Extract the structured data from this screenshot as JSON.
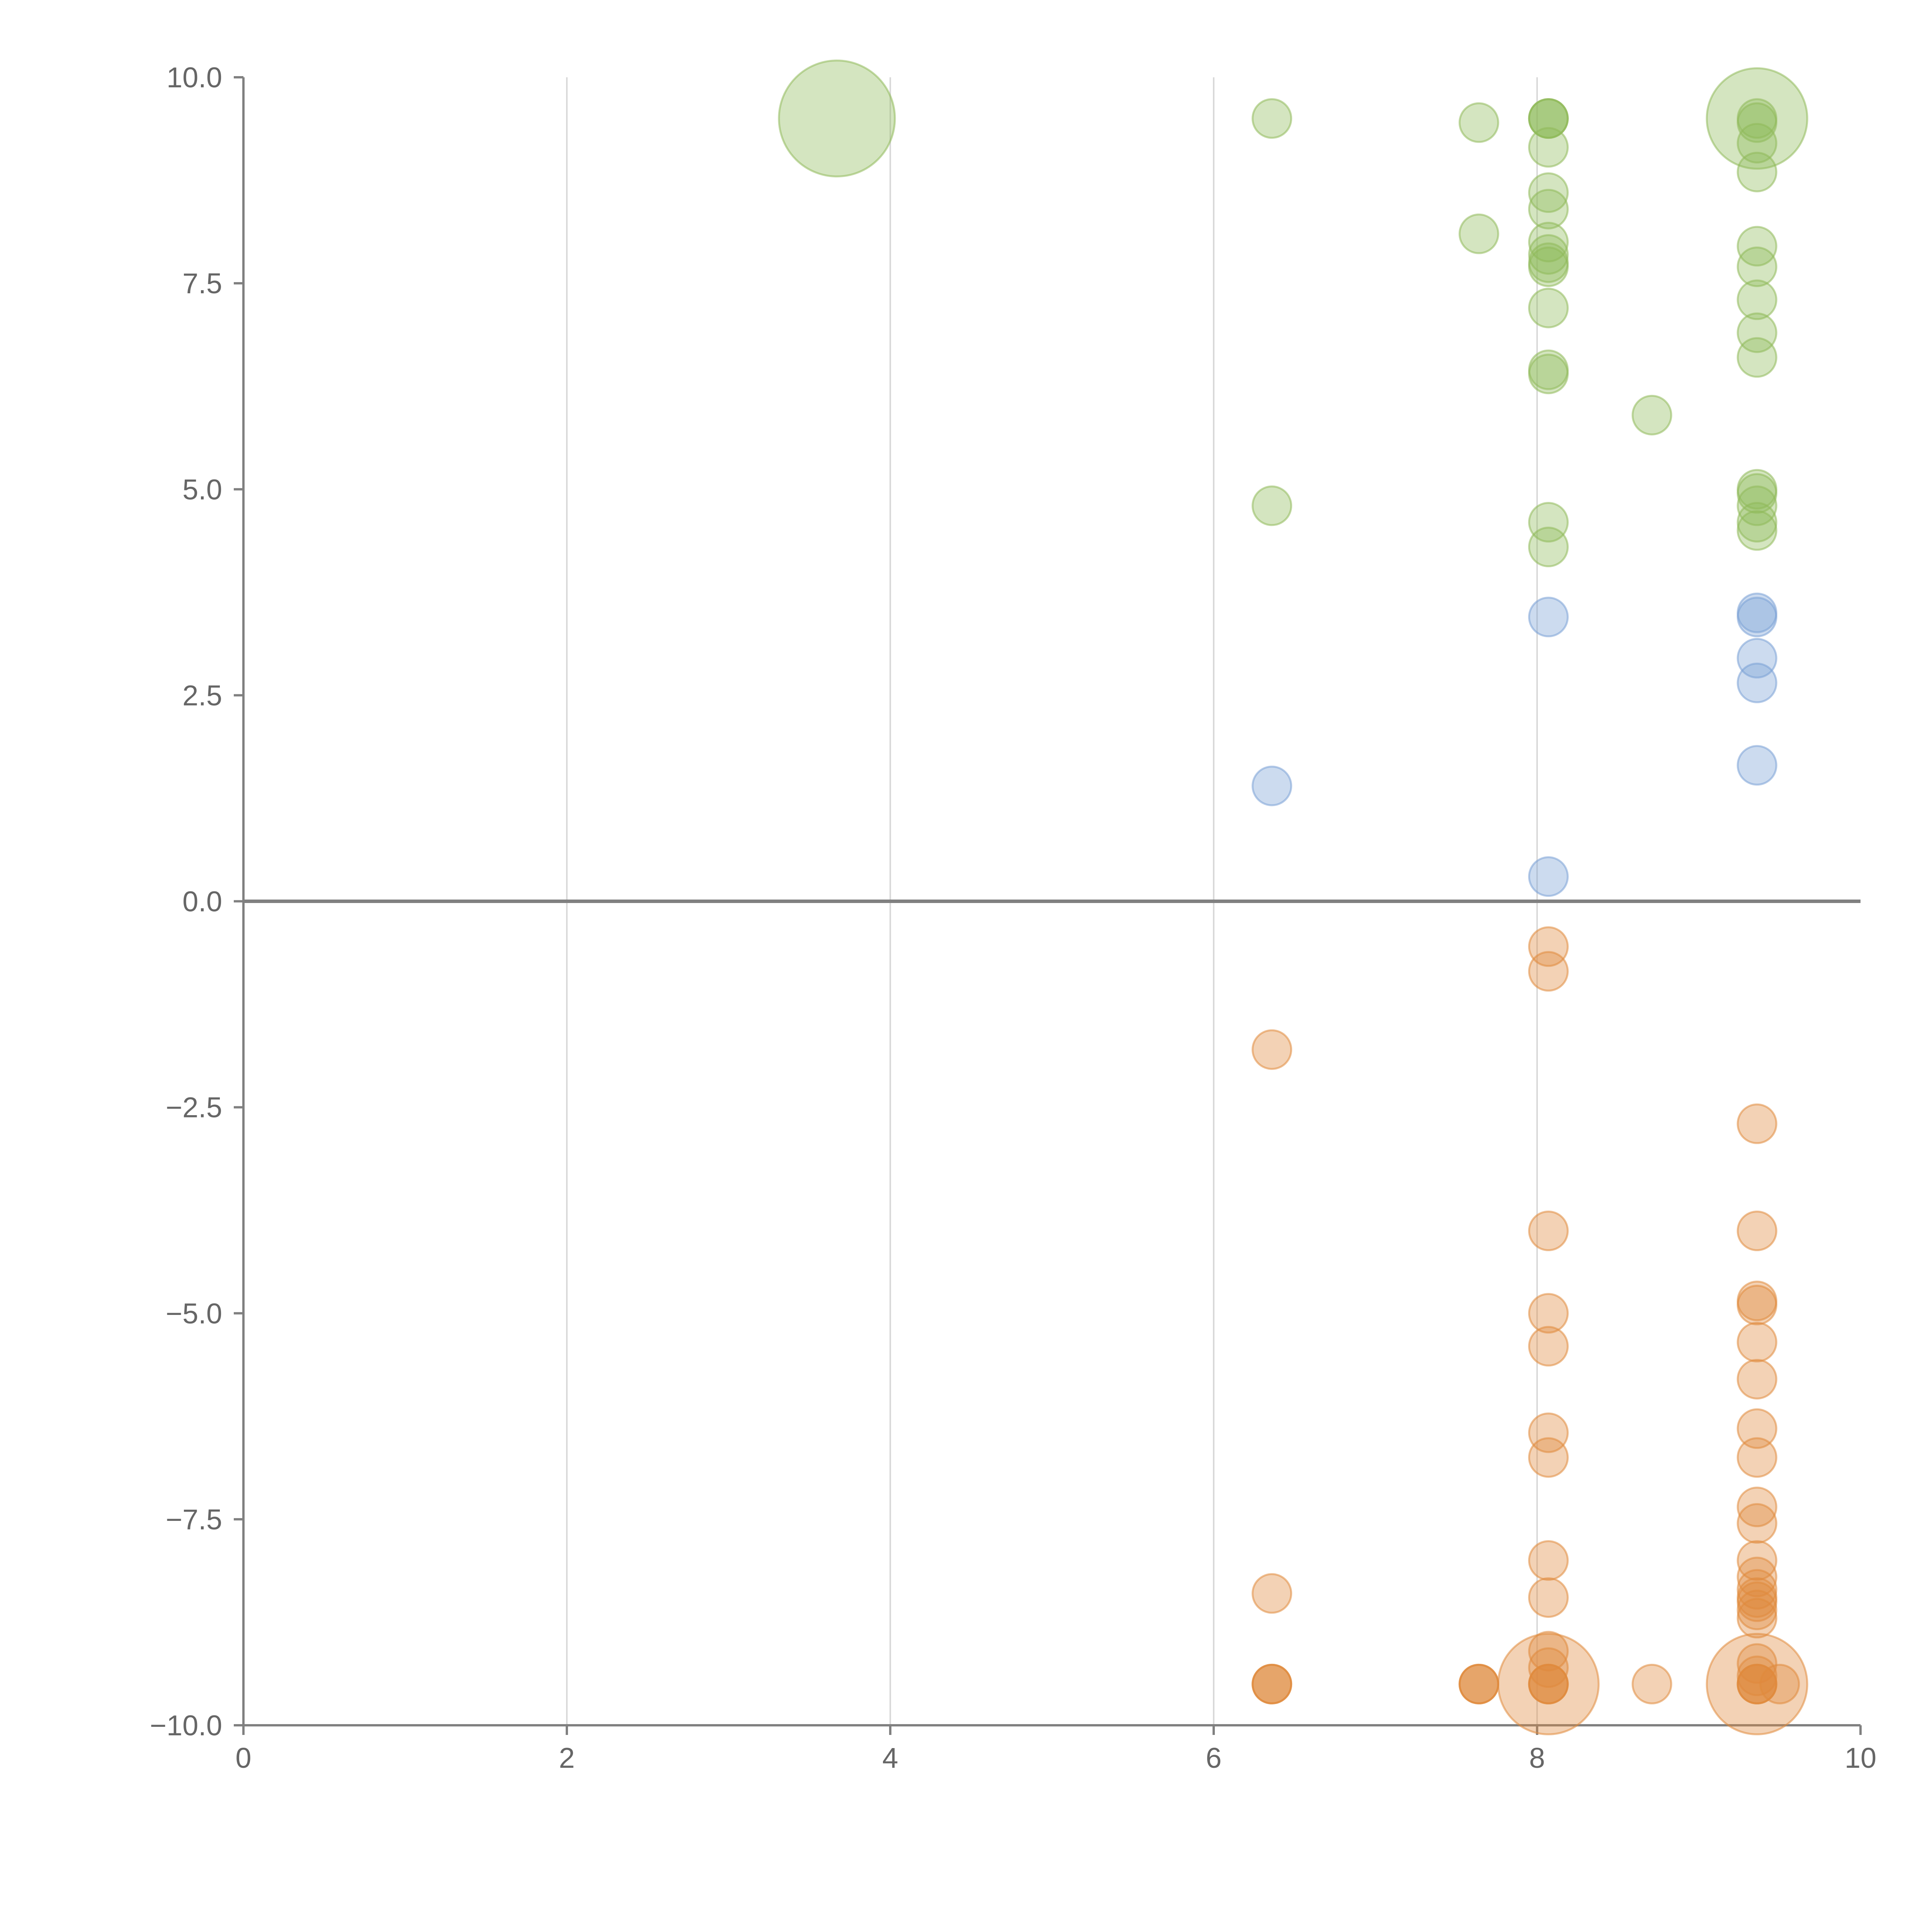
{
  "chart_data": {
    "type": "scatter",
    "title": "",
    "xlabel": "",
    "ylabel": "",
    "xlim": [
      0,
      10
    ],
    "ylim": [
      -10,
      10
    ],
    "x_ticks": [
      "0",
      "2",
      "4",
      "6",
      "8",
      "10"
    ],
    "y_ticks": [
      "10.0",
      "7.5",
      "5.0",
      "2.5",
      "0.0",
      "−2.5",
      "−5.0",
      "−7.5",
      "−10.0"
    ],
    "grid": "vertical",
    "zero_line": true,
    "colors": {
      "green": "#8fba5a",
      "blue": "#7aa0d6",
      "orange": "#e08a3c"
    },
    "series": [
      {
        "color": "#8fba5a",
        "points": [
          {
            "x": 3.67,
            "y": 9.5,
            "size": 3
          },
          {
            "x": 6.36,
            "y": 9.5
          },
          {
            "x": 6.36,
            "y": 4.8
          },
          {
            "x": 7.64,
            "y": 9.45
          },
          {
            "x": 7.64,
            "y": 8.1
          },
          {
            "x": 8.07,
            "y": 9.5
          },
          {
            "x": 8.07,
            "y": 9.5
          },
          {
            "x": 8.07,
            "y": 9.5
          },
          {
            "x": 8.07,
            "y": 9.15
          },
          {
            "x": 8.07,
            "y": 8.6
          },
          {
            "x": 8.07,
            "y": 8.4
          },
          {
            "x": 8.07,
            "y": 8.0
          },
          {
            "x": 8.07,
            "y": 7.85
          },
          {
            "x": 8.07,
            "y": 7.75
          },
          {
            "x": 8.07,
            "y": 7.7
          },
          {
            "x": 8.07,
            "y": 7.2
          },
          {
            "x": 8.07,
            "y": 6.45
          },
          {
            "x": 8.07,
            "y": 6.4
          },
          {
            "x": 8.07,
            "y": 4.6
          },
          {
            "x": 8.07,
            "y": 4.3
          },
          {
            "x": 8.71,
            "y": 5.9
          },
          {
            "x": 9.36,
            "y": 9.5,
            "size": 2.6
          },
          {
            "x": 9.36,
            "y": 9.5
          },
          {
            "x": 9.36,
            "y": 9.45
          },
          {
            "x": 9.36,
            "y": 9.2
          },
          {
            "x": 9.36,
            "y": 8.85
          },
          {
            "x": 9.36,
            "y": 7.95
          },
          {
            "x": 9.36,
            "y": 7.7
          },
          {
            "x": 9.36,
            "y": 7.3
          },
          {
            "x": 9.36,
            "y": 6.9
          },
          {
            "x": 9.36,
            "y": 6.6
          },
          {
            "x": 9.36,
            "y": 5.0
          },
          {
            "x": 9.36,
            "y": 4.95
          },
          {
            "x": 9.36,
            "y": 4.8
          },
          {
            "x": 9.36,
            "y": 4.6
          },
          {
            "x": 9.36,
            "y": 4.5
          }
        ]
      },
      {
        "color": "#7aa0d6",
        "points": [
          {
            "x": 6.36,
            "y": 1.4
          },
          {
            "x": 8.07,
            "y": 3.45
          },
          {
            "x": 8.07,
            "y": 0.3
          },
          {
            "x": 9.36,
            "y": 3.5
          },
          {
            "x": 9.36,
            "y": 3.45
          },
          {
            "x": 9.36,
            "y": 2.95
          },
          {
            "x": 9.36,
            "y": 2.65
          },
          {
            "x": 9.36,
            "y": 1.65
          }
        ]
      },
      {
        "color": "#e08a3c",
        "points": [
          {
            "x": 6.36,
            "y": -1.8
          },
          {
            "x": 6.36,
            "y": -8.4
          },
          {
            "x": 6.36,
            "y": -9.5
          },
          {
            "x": 6.36,
            "y": -9.5
          },
          {
            "x": 6.36,
            "y": -9.5
          },
          {
            "x": 7.64,
            "y": -9.5
          },
          {
            "x": 7.64,
            "y": -9.5
          },
          {
            "x": 7.64,
            "y": -9.5
          },
          {
            "x": 8.07,
            "y": -0.55
          },
          {
            "x": 8.07,
            "y": -0.85
          },
          {
            "x": 8.07,
            "y": -4.0
          },
          {
            "x": 8.07,
            "y": -5.0
          },
          {
            "x": 8.07,
            "y": -5.4
          },
          {
            "x": 8.07,
            "y": -6.45
          },
          {
            "x": 8.07,
            "y": -6.75
          },
          {
            "x": 8.07,
            "y": -8.0
          },
          {
            "x": 8.07,
            "y": -8.45
          },
          {
            "x": 8.07,
            "y": -9.1
          },
          {
            "x": 8.07,
            "y": -9.3
          },
          {
            "x": 8.07,
            "y": -9.5,
            "size": 2.6
          },
          {
            "x": 8.07,
            "y": -9.5
          },
          {
            "x": 8.07,
            "y": -9.5
          },
          {
            "x": 8.07,
            "y": -9.5
          },
          {
            "x": 8.71,
            "y": -9.5
          },
          {
            "x": 9.36,
            "y": -2.7
          },
          {
            "x": 9.36,
            "y": -4.0
          },
          {
            "x": 9.36,
            "y": -4.85
          },
          {
            "x": 9.36,
            "y": -4.9
          },
          {
            "x": 9.36,
            "y": -5.35
          },
          {
            "x": 9.36,
            "y": -5.8
          },
          {
            "x": 9.36,
            "y": -6.4
          },
          {
            "x": 9.36,
            "y": -6.75
          },
          {
            "x": 9.36,
            "y": -7.35
          },
          {
            "x": 9.36,
            "y": -7.55
          },
          {
            "x": 9.36,
            "y": -8.0
          },
          {
            "x": 9.36,
            "y": -8.2
          },
          {
            "x": 9.36,
            "y": -8.35
          },
          {
            "x": 9.36,
            "y": -8.45
          },
          {
            "x": 9.36,
            "y": -8.5
          },
          {
            "x": 9.36,
            "y": -8.6
          },
          {
            "x": 9.36,
            "y": -8.7
          },
          {
            "x": 9.36,
            "y": -9.25
          },
          {
            "x": 9.36,
            "y": -9.4
          },
          {
            "x": 9.36,
            "y": -9.5,
            "size": 2.6
          },
          {
            "x": 9.36,
            "y": -9.5
          },
          {
            "x": 9.36,
            "y": -9.5
          },
          {
            "x": 9.36,
            "y": -9.5
          },
          {
            "x": 9.5,
            "y": -9.5
          }
        ]
      }
    ]
  }
}
